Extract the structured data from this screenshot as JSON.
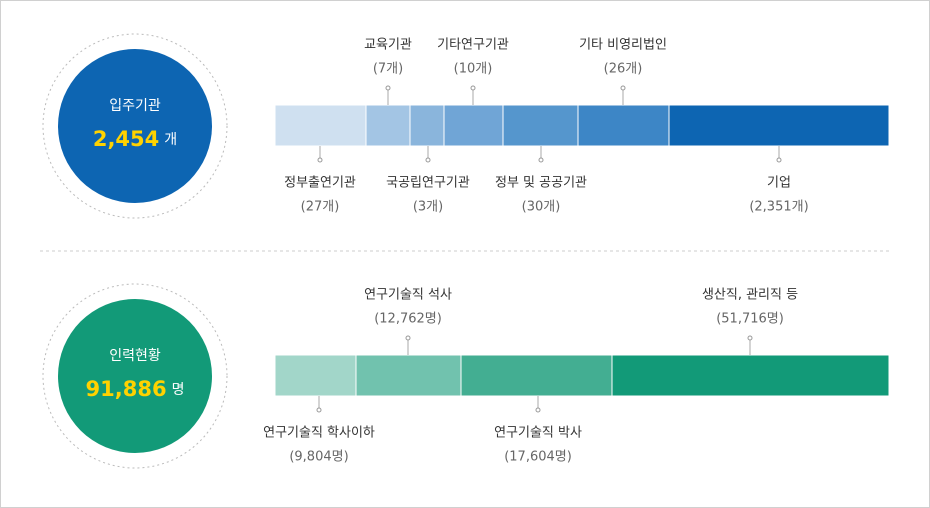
{
  "sections": [
    {
      "circle": {
        "label": "입주기관",
        "count": "2,454",
        "unit": "개"
      },
      "segments": [
        {
          "name": "정부출연기관",
          "count": "(27개)"
        },
        {
          "name": "교육기관",
          "count": "(7개)"
        },
        {
          "name": "국공립연구기관",
          "count": "(3개)"
        },
        {
          "name": "기타연구기관",
          "count": "(10개)"
        },
        {
          "name": "정부 및 공공기관",
          "count": "(30개)"
        },
        {
          "name": "기타 비영리법인",
          "count": "(26개)"
        },
        {
          "name": "기업",
          "count": "(2,351개)"
        }
      ]
    },
    {
      "circle": {
        "label": "인력현황",
        "count": "91,886",
        "unit": "명"
      },
      "segments": [
        {
          "name": "연구기술직 학사이하",
          "count": "(9,804명)"
        },
        {
          "name": "연구기술직 석사",
          "count": "(12,762명)"
        },
        {
          "name": "연구기술직 박사",
          "count": "(17,604명)"
        },
        {
          "name": "생산직, 관리직 등",
          "count": "(51,716명)"
        }
      ]
    }
  ]
}
